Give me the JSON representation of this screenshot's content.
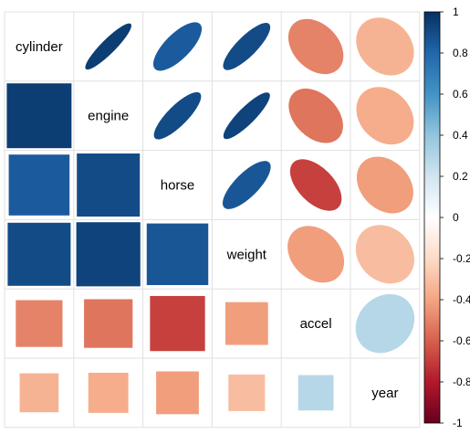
{
  "chart_data": {
    "type": "heatmap",
    "variables": [
      "cylinder",
      "engine",
      "horse",
      "weight",
      "accel",
      "year"
    ],
    "matrix": [
      [
        1.0,
        0.95,
        0.84,
        0.9,
        -0.5,
        -0.35
      ],
      [
        0.95,
        1.0,
        0.9,
        0.93,
        -0.54,
        -0.37
      ],
      [
        0.84,
        0.9,
        1.0,
        0.86,
        -0.69,
        -0.42
      ],
      [
        0.9,
        0.93,
        0.86,
        1.0,
        -0.42,
        -0.31
      ],
      [
        -0.5,
        -0.54,
        -0.69,
        -0.42,
        1.0,
        0.29
      ],
      [
        -0.35,
        -0.37,
        -0.42,
        -0.31,
        0.29,
        1.0
      ]
    ],
    "upper_method": "ellipse",
    "lower_method": "square",
    "diagonal": "labels",
    "colorbar": {
      "range": [
        -1,
        1
      ],
      "ticks": [
        "1",
        "0.8",
        "0.6",
        "0.4",
        "0.2",
        "0",
        "-0.2",
        "-0.4",
        "-0.6",
        "-0.8",
        "-1"
      ],
      "colors": [
        "#67001F",
        "#B2182B",
        "#D6604D",
        "#F4A582",
        "#FDDBC7",
        "#FFFFFF",
        "#D1E5F0",
        "#92C5DE",
        "#4393C3",
        "#2166AC",
        "#053061"
      ]
    }
  }
}
